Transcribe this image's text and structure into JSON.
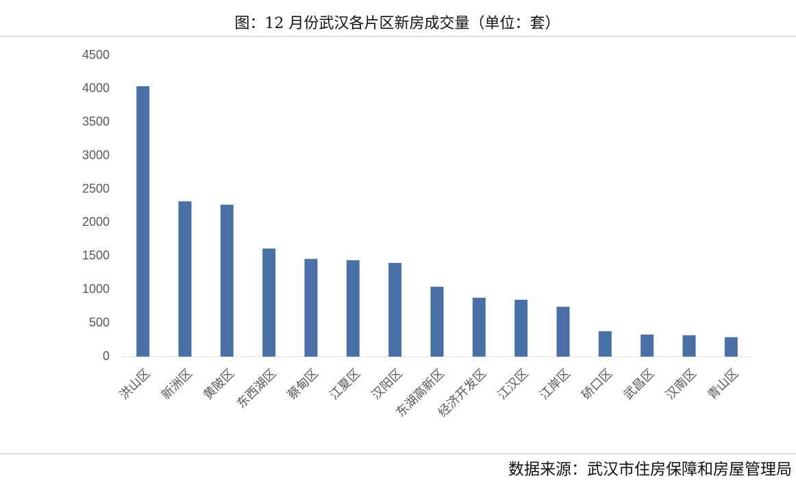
{
  "chart_data": {
    "type": "bar",
    "title": "图：12 月份武汉各片区新房成交量（单位：套）",
    "source": "数据来源：武汉市住房保障和房屋管理局",
    "categories": [
      "洪山区",
      "新洲区",
      "黄陂区",
      "东西湖区",
      "蔡甸区",
      "江夏区",
      "汉阳区",
      "东湖高新区",
      "经济开发区",
      "江汉区",
      "江岸区",
      "硚口区",
      "武昌区",
      "汉南区",
      "青山区"
    ],
    "values": [
      4040,
      2320,
      2270,
      1615,
      1460,
      1440,
      1400,
      1045,
      880,
      850,
      745,
      380,
      330,
      320,
      290
    ],
    "color": "#4a70a8",
    "ylim": [
      0,
      4500
    ],
    "yticks": [
      0,
      500,
      1000,
      1500,
      2000,
      2500,
      3000,
      3500,
      4000,
      4500
    ],
    "grid": false
  }
}
